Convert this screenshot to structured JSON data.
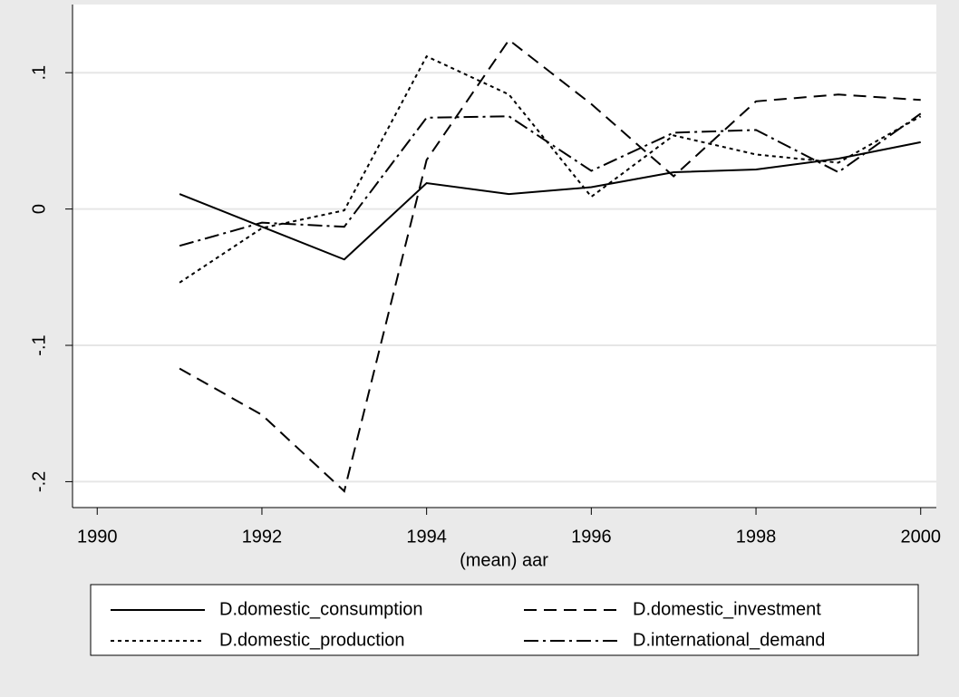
{
  "chart_data": {
    "type": "line",
    "x_label": "(mean) aar",
    "x": [
      1991,
      1992,
      1993,
      1994,
      1995,
      1996,
      1997,
      1998,
      1999,
      2000
    ],
    "series": [
      {
        "name": "D.domestic_consumption",
        "color": "#000000",
        "dash": "solid",
        "values": [
          0.011,
          -0.013,
          -0.037,
          0.019,
          0.011,
          0.016,
          0.027,
          0.029,
          0.037,
          0.049
        ]
      },
      {
        "name": "D.domestic_investment",
        "color": "#000000",
        "dash": "dashed",
        "values": [
          -0.117,
          -0.151,
          -0.207,
          0.036,
          0.124,
          0.077,
          0.024,
          0.079,
          0.084,
          0.08
        ]
      },
      {
        "name": "D.domestic_production",
        "color": "#000000",
        "dash": "dotted",
        "values": [
          -0.054,
          -0.014,
          -0.001,
          0.112,
          0.084,
          0.009,
          0.054,
          0.04,
          0.034,
          0.068
        ]
      },
      {
        "name": "D.international_demand",
        "color": "#000000",
        "dash": "dashdot",
        "values": [
          -0.027,
          -0.01,
          -0.013,
          0.067,
          0.068,
          0.028,
          0.056,
          0.058,
          0.027,
          0.07
        ]
      }
    ],
    "xlim": [
      1989.7,
      2000.19
    ],
    "xticks": [
      1990,
      1992,
      1994,
      1996,
      1998,
      2000
    ],
    "ylim": [
      -0.219,
      0.15
    ],
    "yticks": [
      {
        "value": -0.2,
        "label": "-.2"
      },
      {
        "value": -0.1,
        "label": "-.1"
      },
      0,
      {
        "value": 0.1,
        "label": ".1"
      }
    ],
    "grid": true
  }
}
